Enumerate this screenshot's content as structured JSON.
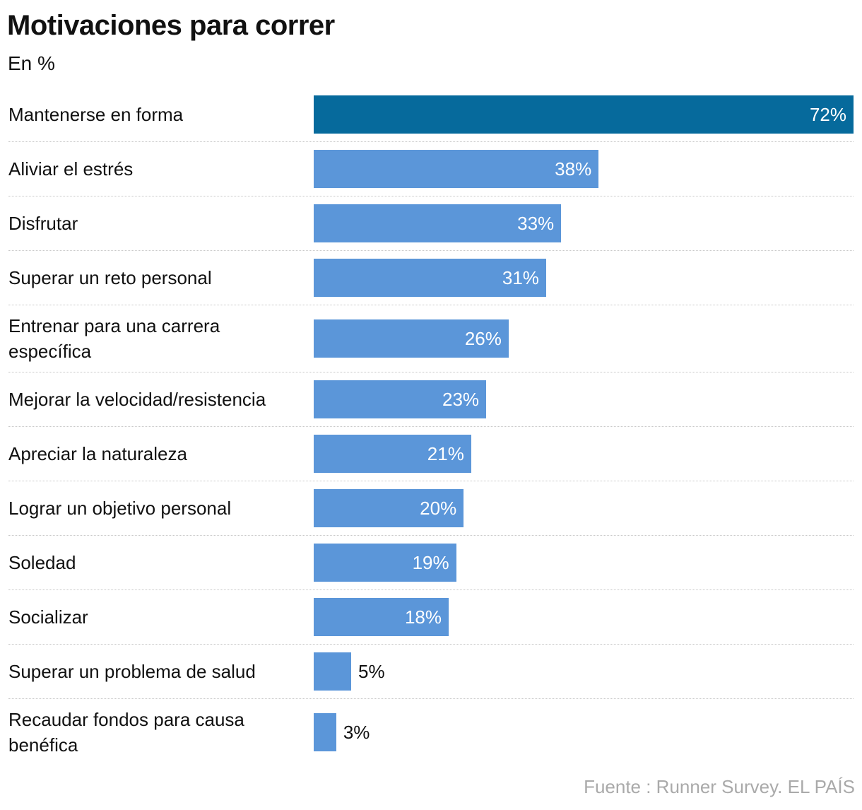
{
  "chart_data": {
    "type": "bar",
    "orientation": "horizontal",
    "title": "Motivaciones para correr",
    "subtitle": "En %",
    "source": "Fuente : Runner Survey. EL PAÍS",
    "categories": [
      "Mantenerse en forma",
      "Aliviar el estrés",
      "Disfrutar",
      "Superar un reto personal",
      "Entrenar para una carrera específica",
      "Mejorar la velocidad/resistencia",
      "Apreciar la naturaleza",
      "Lograr un objetivo personal",
      "Soledad",
      "Socializar",
      "Superar un problema de salud",
      "Recaudar fondos para causa benéfica"
    ],
    "values": [
      72,
      38,
      33,
      31,
      26,
      23,
      21,
      20,
      19,
      18,
      5,
      3
    ],
    "value_labels": [
      "72%",
      "38%",
      "33%",
      "31%",
      "26%",
      "23%",
      "21%",
      "20%",
      "19%",
      "18%",
      "5%",
      "3%"
    ],
    "colors": [
      "#066a9c",
      "#5b96d9",
      "#5b96d9",
      "#5b96d9",
      "#5b96d9",
      "#5b96d9",
      "#5b96d9",
      "#5b96d9",
      "#5b96d9",
      "#5b96d9",
      "#5b96d9",
      "#5b96d9"
    ]
  }
}
